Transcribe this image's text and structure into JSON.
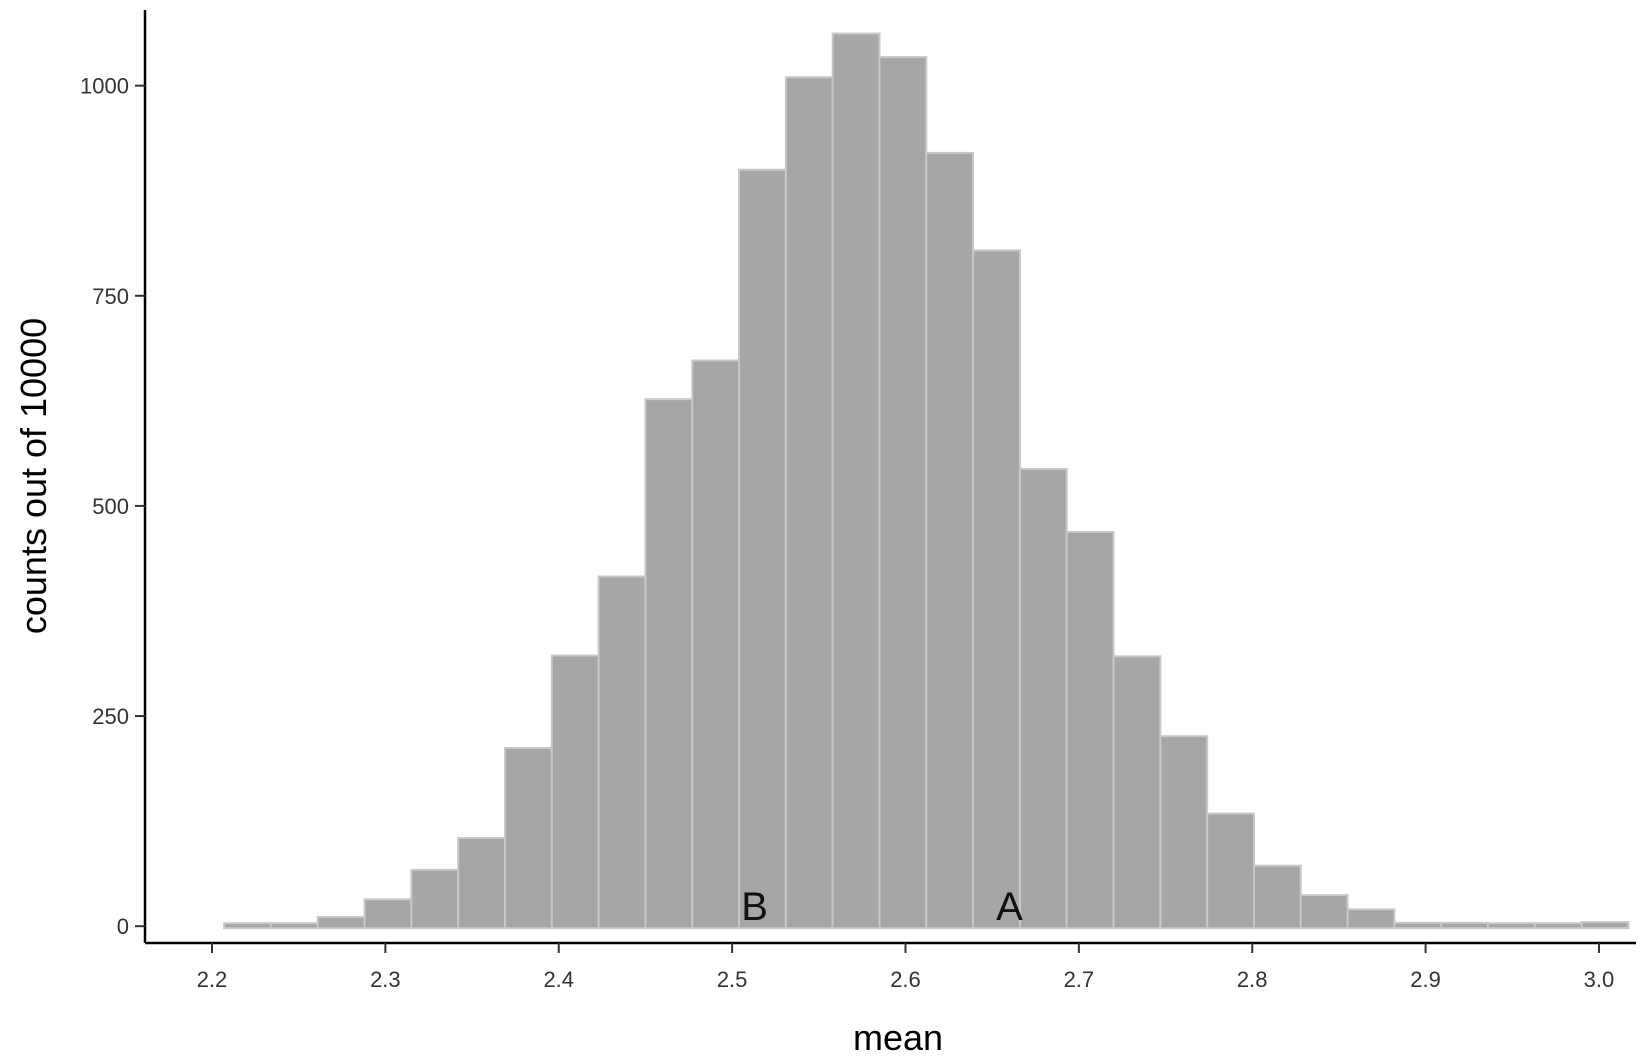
{
  "chart_data": {
    "type": "bar",
    "xlabel": "mean",
    "ylabel": "counts out of 10000",
    "xlim": [
      2.2,
      3.06
    ],
    "ylim": [
      -20,
      1090
    ],
    "x_ticks": [
      "2.2",
      "2.3",
      "2.4",
      "2.5",
      "2.6",
      "2.7",
      "2.8",
      "2.9",
      "3.0"
    ],
    "y_ticks": [
      "0",
      "250",
      "500",
      "750",
      "1000"
    ],
    "grid": false,
    "bins": [
      {
        "x0": 2.207,
        "x1": 2.234,
        "count": 2
      },
      {
        "x0": 2.234,
        "x1": 2.261,
        "count": 2
      },
      {
        "x0": 2.261,
        "x1": 2.288,
        "count": 11
      },
      {
        "x0": 2.288,
        "x1": 2.315,
        "count": 32
      },
      {
        "x0": 2.315,
        "x1": 2.342,
        "count": 67
      },
      {
        "x0": 2.342,
        "x1": 2.369,
        "count": 105
      },
      {
        "x0": 2.369,
        "x1": 2.396,
        "count": 212
      },
      {
        "x0": 2.396,
        "x1": 2.423,
        "count": 322
      },
      {
        "x0": 2.423,
        "x1": 2.45,
        "count": 416
      },
      {
        "x0": 2.45,
        "x1": 2.477,
        "count": 627
      },
      {
        "x0": 2.477,
        "x1": 2.504,
        "count": 673
      },
      {
        "x0": 2.504,
        "x1": 2.531,
        "count": 900
      },
      {
        "x0": 2.531,
        "x1": 2.558,
        "count": 1010
      },
      {
        "x0": 2.558,
        "x1": 2.585,
        "count": 1062
      },
      {
        "x0": 2.585,
        "x1": 2.612,
        "count": 1034
      },
      {
        "x0": 2.612,
        "x1": 2.639,
        "count": 920
      },
      {
        "x0": 2.639,
        "x1": 2.666,
        "count": 804
      },
      {
        "x0": 2.666,
        "x1": 2.693,
        "count": 544
      },
      {
        "x0": 2.693,
        "x1": 2.72,
        "count": 469
      },
      {
        "x0": 2.72,
        "x1": 2.747,
        "count": 321
      },
      {
        "x0": 2.747,
        "x1": 2.774,
        "count": 226
      },
      {
        "x0": 2.774,
        "x1": 2.801,
        "count": 134
      },
      {
        "x0": 2.801,
        "x1": 2.828,
        "count": 72
      },
      {
        "x0": 2.828,
        "x1": 2.855,
        "count": 37
      },
      {
        "x0": 2.855,
        "x1": 2.882,
        "count": 20
      },
      {
        "x0": 2.882,
        "x1": 2.909,
        "count": 4
      },
      {
        "x0": 2.909,
        "x1": 2.936,
        "count": 4
      },
      {
        "x0": 2.936,
        "x1": 2.963,
        "count": 1
      },
      {
        "x0": 2.963,
        "x1": 2.99,
        "count": 1
      },
      {
        "x0": 2.99,
        "x1": 3.017,
        "count": 5
      }
    ],
    "annotations": [
      {
        "text": "B",
        "x": 2.513,
        "y": 0
      },
      {
        "text": "A",
        "x": 2.66,
        "y": 0
      }
    ],
    "colors": {
      "bar_fill": "#a6a6a6",
      "bar_stroke": "#c8c8c8",
      "axis": "#000000"
    }
  }
}
